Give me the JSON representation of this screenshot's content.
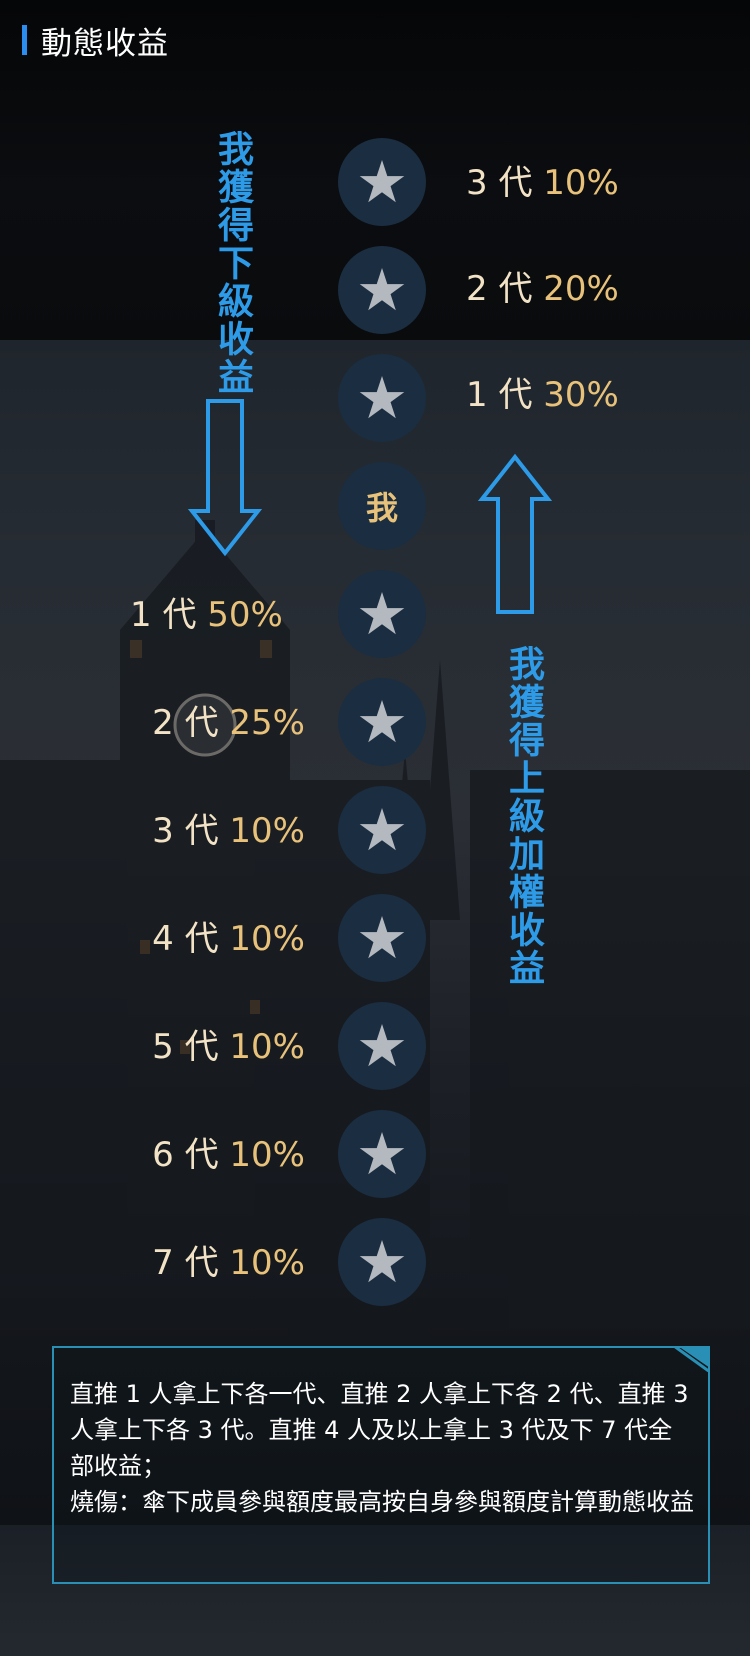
{
  "header": {
    "title": "動態收益"
  },
  "me_label": "我",
  "upper_generations": [
    {
      "gen": "3",
      "unit": "代",
      "pct": "10%"
    },
    {
      "gen": "2",
      "unit": "代",
      "pct": "20%"
    },
    {
      "gen": "1",
      "unit": "代",
      "pct": "30%"
    }
  ],
  "lower_generations": [
    {
      "gen": "1",
      "unit": "代",
      "pct": "50%"
    },
    {
      "gen": "2",
      "unit": "代",
      "pct": "25%"
    },
    {
      "gen": "3",
      "unit": "代",
      "pct": "10%"
    },
    {
      "gen": "4",
      "unit": "代",
      "pct": "10%"
    },
    {
      "gen": "5",
      "unit": "代",
      "pct": "10%"
    },
    {
      "gen": "6",
      "unit": "代",
      "pct": "10%"
    },
    {
      "gen": "7",
      "unit": "代",
      "pct": "10%"
    }
  ],
  "labels": {
    "down_income": "我獲得下級收益",
    "up_income": "我獲得上級加權收益"
  },
  "note": {
    "rule": "直推 1 人拿上下各一代、直推 2 人拿上下各 2 代、直推 3 人拿上下各 3 代。直推 4 人及以上拿上 3 代及下 7 代全部收益；",
    "burn_label": "燒傷：",
    "burn_text": "傘下成員參與額度最高按自身參與額度計算動態收益"
  },
  "colors": {
    "accent_blue": "#2e9be8",
    "gold": "#e8c27a",
    "circle_bg": "#1b2d40",
    "box_border": "#2a8fb5"
  },
  "icons": {
    "member": "star-icon"
  }
}
